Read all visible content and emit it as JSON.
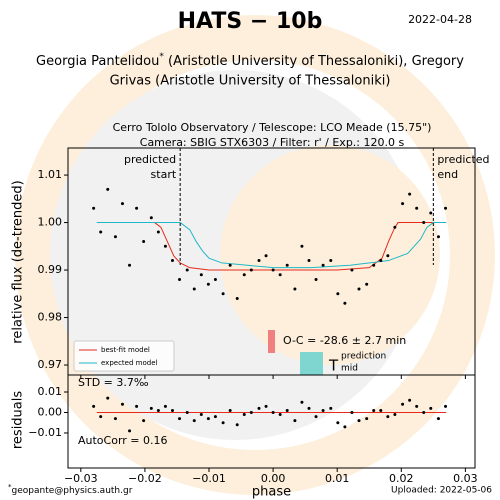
{
  "header": {
    "title": "HATS − 10b",
    "date": "2022-04-28",
    "author_a": "Georgia Pantelidou",
    "star": "*",
    "author_b": " (Aristotle University of Thessaloniki), Gregory",
    "author_line2": "Grivas (Aristotle University of Thessaloniki)"
  },
  "footer": {
    "star": "*",
    "email": "geopante@physics.auth.gr",
    "uploaded": "Uploaded: 2022-05-06"
  },
  "chart_data": [
    {
      "type": "scatter",
      "title": [
        "Cerro Tololo Observatory / Telescope: LCO Meade (15.75\")",
        "Camera: SBIG STX6303 / Filter: r' / Exp.: 120.0 s"
      ],
      "ylabel": "relative flux (de-trended)",
      "x": [
        -0.028,
        -0.0269,
        -0.0258,
        -0.0246,
        -0.0235,
        -0.0224,
        -0.0213,
        -0.0202,
        -0.019,
        -0.0179,
        -0.0168,
        -0.0157,
        -0.0146,
        -0.0134,
        -0.0123,
        -0.0112,
        -0.0101,
        -0.009,
        -0.0078,
        -0.0067,
        -0.0056,
        -0.0045,
        -0.0034,
        -0.0022,
        -0.0011,
        0.0,
        0.0011,
        0.0022,
        0.0034,
        0.0045,
        0.0056,
        0.0067,
        0.0078,
        0.009,
        0.0101,
        0.0112,
        0.0123,
        0.0134,
        0.0146,
        0.0157,
        0.0168,
        0.0179,
        0.019,
        0.0202,
        0.0213,
        0.0224,
        0.0235,
        0.0246,
        0.0258,
        0.0269
      ],
      "series": [
        {
          "color": "#000000",
          "values": [
            1.003,
            0.998,
            1.007,
            0.997,
            1.004,
            0.991,
            1.003,
            0.996,
            1.001,
            0.998,
            0.995,
            0.992,
            0.988,
            0.99,
            0.986,
            0.989,
            0.987,
            0.988,
            0.985,
            0.991,
            0.984,
            0.989,
            0.99,
            0.992,
            0.993,
            0.99,
            0.989,
            0.991,
            0.986,
            0.995,
            0.992,
            0.988,
            0.991,
            0.992,
            0.985,
            0.983,
            0.99,
            0.986,
            0.987,
            0.991,
            0.992,
            0.993,
            0.999,
            1.004,
            1.006,
            1.003,
            1.0,
            1.002,
            0.997,
            1.003
          ]
        }
      ],
      "models": [
        {
          "name": "best-fit model",
          "color": "#e8291c",
          "x": [
            -0.0275,
            -0.0185,
            -0.0175,
            -0.0165,
            -0.0155,
            -0.0145,
            -0.013,
            -0.01,
            0,
            0.01,
            0.015,
            0.017,
            0.018,
            0.019,
            0.0195,
            0.027
          ],
          "values": [
            1.0,
            1.0,
            0.999,
            0.996,
            0.993,
            0.9915,
            0.9905,
            0.99,
            0.99,
            0.99,
            0.9905,
            0.9925,
            0.996,
            0.999,
            1.0,
            1.0
          ]
        },
        {
          "name": "expected model",
          "color": "#1fb8c8",
          "x": [
            -0.0275,
            -0.0145,
            -0.013,
            -0.012,
            -0.011,
            -0.01,
            -0.008,
            -0.004,
            0,
            0.006,
            0.012,
            0.018,
            0.021,
            0.023,
            0.024,
            0.025,
            0.027
          ],
          "values": [
            1.0,
            1.0,
            0.9985,
            0.996,
            0.994,
            0.9925,
            0.9915,
            0.991,
            0.9905,
            0.9905,
            0.991,
            0.992,
            0.9935,
            0.9965,
            0.999,
            1.0,
            1.0
          ]
        }
      ],
      "predicted_start": {
        "x": -0.0145,
        "label": [
          "predicted",
          "start"
        ]
      },
      "predicted_end": {
        "x": 0.025,
        "label": [
          "predicted",
          "end"
        ]
      },
      "oc_label": "O-C = -28.6 ± 2.7 min",
      "tmid_label": {
        "main": "T",
        "sup": "prediction",
        "sub": "mid"
      },
      "legend": "lower left",
      "xlim": [
        -0.032,
        0.0315
      ],
      "ylim": [
        0.9679,
        1.0157
      ],
      "yticks": [
        0.97,
        0.98,
        0.99,
        {
          "value": 1.0,
          "label": "1.00"
        },
        1.01
      ]
    },
    {
      "type": "scatter",
      "ylabel": "residuals",
      "xlabel": "phase",
      "values": [
        0.003,
        -0.002,
        0.007,
        -0.003,
        0.004,
        -0.009,
        0.003,
        -0.004,
        0.002,
        0.001,
        0.003,
        0.001,
        -0.003,
        0.0,
        -0.004,
        -0.001,
        -0.003,
        -0.002,
        -0.005,
        0.001,
        -0.006,
        -0.001,
        0.0,
        0.002,
        0.003,
        0.0,
        -0.001,
        0.001,
        -0.004,
        0.005,
        0.002,
        -0.002,
        0.001,
        0.002,
        -0.005,
        -0.007,
        0.0,
        -0.004,
        -0.003,
        0.001,
        0.001,
        -0.002,
        -0.001,
        0.004,
        0.006,
        0.003,
        0.0,
        0.002,
        -0.003,
        0.003
      ],
      "color": "#000000",
      "zero_line_color": "#e8291c",
      "std_label": "STD = 3.7‰",
      "autocorr_label": "AutoCorr = 0.16",
      "xlim": [
        -0.032,
        0.0315
      ],
      "ylim": [
        -0.0271,
        0.0183
      ],
      "yticks": [
        {
          "value": -0.01,
          "label": "−0.01"
        },
        {
          "value": 0,
          "label": "0.00"
        },
        0.01
      ],
      "xticks": [
        {
          "value": -0.03,
          "label": "−0.03"
        },
        {
          "value": -0.02,
          "label": "−0.02"
        },
        {
          "value": -0.01,
          "label": "−0.01"
        },
        {
          "value": 0,
          "label": "0.00"
        },
        0.01,
        0.02,
        0.03
      ]
    }
  ]
}
